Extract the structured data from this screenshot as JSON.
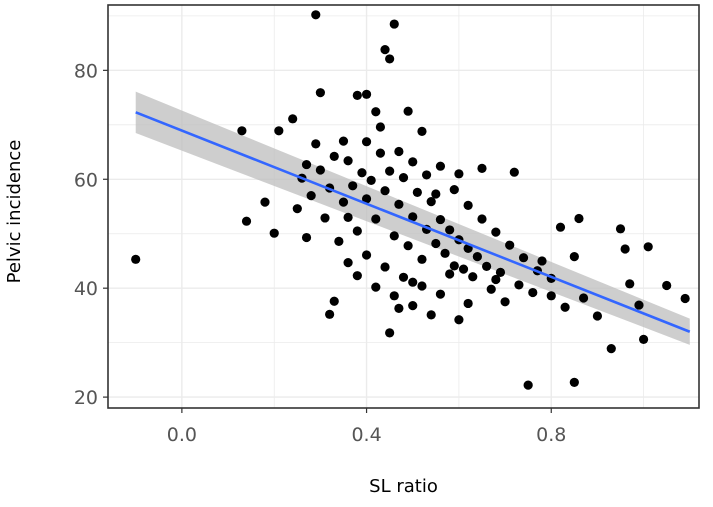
{
  "chart_data": {
    "type": "scatter",
    "title": "",
    "xlabel": "SL ratio",
    "ylabel": "Pelvic incidence",
    "xlim": [
      -0.16,
      1.12
    ],
    "ylim": [
      18,
      92
    ],
    "x_ticks": [
      0.0,
      0.4,
      0.8
    ],
    "x_tick_labels": [
      "0.0",
      "0.4",
      "0.8"
    ],
    "y_ticks": [
      20,
      40,
      60,
      80
    ],
    "y_tick_labels": [
      "20",
      "40",
      "60",
      "80"
    ],
    "grid": true,
    "legend": "none",
    "colors": {
      "points": "#000000",
      "trend_line": "#3366ff",
      "confidence_band": "#bdbdbd",
      "grid": "#ebebeb",
      "panel_border": "#333333"
    },
    "trend_line": {
      "type": "linear regression",
      "x": [
        -0.1,
        1.1
      ],
      "y": [
        72.3,
        32.0
      ],
      "ci_lower": [
        68.5,
        29.6
      ],
      "ci_upper": [
        76.1,
        34.4
      ]
    },
    "points": [
      {
        "x": -0.1,
        "y": 45.3
      },
      {
        "x": 0.13,
        "y": 68.9
      },
      {
        "x": 0.14,
        "y": 52.3
      },
      {
        "x": 0.18,
        "y": 55.8
      },
      {
        "x": 0.2,
        "y": 50.1
      },
      {
        "x": 0.21,
        "y": 68.9
      },
      {
        "x": 0.24,
        "y": 71.1
      },
      {
        "x": 0.25,
        "y": 54.6
      },
      {
        "x": 0.27,
        "y": 62.7
      },
      {
        "x": 0.29,
        "y": 90.2
      },
      {
        "x": 0.3,
        "y": 75.9
      },
      {
        "x": 0.32,
        "y": 35.2
      },
      {
        "x": 0.33,
        "y": 37.6
      },
      {
        "x": 0.35,
        "y": 67.0
      },
      {
        "x": 0.36,
        "y": 63.4
      },
      {
        "x": 0.38,
        "y": 75.4
      },
      {
        "x": 0.4,
        "y": 75.6
      },
      {
        "x": 0.42,
        "y": 72.4
      },
      {
        "x": 0.44,
        "y": 83.8
      },
      {
        "x": 0.45,
        "y": 82.1
      },
      {
        "x": 0.46,
        "y": 88.5
      },
      {
        "x": 0.45,
        "y": 31.8
      },
      {
        "x": 0.47,
        "y": 36.3
      },
      {
        "x": 0.49,
        "y": 72.5
      },
      {
        "x": 0.5,
        "y": 41.1
      },
      {
        "x": 0.52,
        "y": 68.8
      },
      {
        "x": 0.55,
        "y": 57.3
      },
      {
        "x": 0.58,
        "y": 42.6
      },
      {
        "x": 0.6,
        "y": 61.0
      },
      {
        "x": 0.62,
        "y": 37.2
      },
      {
        "x": 0.65,
        "y": 62.0
      },
      {
        "x": 0.68,
        "y": 41.6
      },
      {
        "x": 0.72,
        "y": 61.3
      },
      {
        "x": 0.75,
        "y": 22.2
      },
      {
        "x": 0.78,
        "y": 45.0
      },
      {
        "x": 0.8,
        "y": 38.6
      },
      {
        "x": 0.82,
        "y": 51.2
      },
      {
        "x": 0.85,
        "y": 45.8
      },
      {
        "x": 0.85,
        "y": 22.7
      },
      {
        "x": 0.86,
        "y": 52.8
      },
      {
        "x": 0.87,
        "y": 38.2
      },
      {
        "x": 0.9,
        "y": 34.9
      },
      {
        "x": 0.93,
        "y": 28.9
      },
      {
        "x": 0.95,
        "y": 50.9
      },
      {
        "x": 0.96,
        "y": 47.2
      },
      {
        "x": 0.97,
        "y": 40.8
      },
      {
        "x": 0.99,
        "y": 36.9
      },
      {
        "x": 1.0,
        "y": 30.6
      },
      {
        "x": 1.01,
        "y": 47.6
      },
      {
        "x": 1.05,
        "y": 40.5
      },
      {
        "x": 1.09,
        "y": 38.1
      },
      {
        "x": 0.35,
        "y": 55.8
      },
      {
        "x": 0.36,
        "y": 53.0
      },
      {
        "x": 0.37,
        "y": 58.8
      },
      {
        "x": 0.38,
        "y": 50.5
      },
      {
        "x": 0.39,
        "y": 61.2
      },
      {
        "x": 0.4,
        "y": 56.4
      },
      {
        "x": 0.41,
        "y": 59.8
      },
      {
        "x": 0.42,
        "y": 52.7
      },
      {
        "x": 0.43,
        "y": 64.8
      },
      {
        "x": 0.44,
        "y": 57.9
      },
      {
        "x": 0.45,
        "y": 61.5
      },
      {
        "x": 0.46,
        "y": 49.6
      },
      {
        "x": 0.47,
        "y": 55.4
      },
      {
        "x": 0.48,
        "y": 60.3
      },
      {
        "x": 0.49,
        "y": 47.8
      },
      {
        "x": 0.5,
        "y": 53.1
      },
      {
        "x": 0.51,
        "y": 57.6
      },
      {
        "x": 0.52,
        "y": 45.3
      },
      {
        "x": 0.53,
        "y": 50.8
      },
      {
        "x": 0.54,
        "y": 55.9
      },
      {
        "x": 0.55,
        "y": 48.2
      },
      {
        "x": 0.56,
        "y": 52.6
      },
      {
        "x": 0.57,
        "y": 46.4
      },
      {
        "x": 0.58,
        "y": 50.7
      },
      {
        "x": 0.59,
        "y": 44.1
      },
      {
        "x": 0.6,
        "y": 48.9
      },
      {
        "x": 0.61,
        "y": 43.5
      },
      {
        "x": 0.62,
        "y": 47.3
      },
      {
        "x": 0.63,
        "y": 42.1
      },
      {
        "x": 0.64,
        "y": 45.8
      },
      {
        "x": 0.66,
        "y": 44.0
      },
      {
        "x": 0.67,
        "y": 39.8
      },
      {
        "x": 0.69,
        "y": 42.9
      },
      {
        "x": 0.7,
        "y": 37.5
      },
      {
        "x": 0.73,
        "y": 40.6
      },
      {
        "x": 0.76,
        "y": 39.2
      },
      {
        "x": 0.32,
        "y": 58.4
      },
      {
        "x": 0.33,
        "y": 64.2
      },
      {
        "x": 0.34,
        "y": 48.6
      },
      {
        "x": 0.3,
        "y": 61.7
      },
      {
        "x": 0.31,
        "y": 52.9
      },
      {
        "x": 0.28,
        "y": 57.0
      },
      {
        "x": 0.29,
        "y": 66.5
      },
      {
        "x": 0.27,
        "y": 49.3
      },
      {
        "x": 0.26,
        "y": 60.2
      },
      {
        "x": 0.36,
        "y": 44.7
      },
      {
        "x": 0.38,
        "y": 42.3
      },
      {
        "x": 0.4,
        "y": 46.1
      },
      {
        "x": 0.42,
        "y": 40.2
      },
      {
        "x": 0.44,
        "y": 43.9
      },
      {
        "x": 0.46,
        "y": 38.6
      },
      {
        "x": 0.48,
        "y": 42.0
      },
      {
        "x": 0.5,
        "y": 36.8
      },
      {
        "x": 0.52,
        "y": 40.4
      },
      {
        "x": 0.54,
        "y": 35.1
      },
      {
        "x": 0.56,
        "y": 38.9
      },
      {
        "x": 0.6,
        "y": 34.2
      },
      {
        "x": 0.4,
        "y": 66.9
      },
      {
        "x": 0.43,
        "y": 69.6
      },
      {
        "x": 0.47,
        "y": 65.1
      },
      {
        "x": 0.5,
        "y": 63.2
      },
      {
        "x": 0.53,
        "y": 60.8
      },
      {
        "x": 0.56,
        "y": 62.4
      },
      {
        "x": 0.59,
        "y": 58.1
      },
      {
        "x": 0.62,
        "y": 55.2
      },
      {
        "x": 0.65,
        "y": 52.7
      },
      {
        "x": 0.68,
        "y": 50.3
      },
      {
        "x": 0.71,
        "y": 47.9
      },
      {
        "x": 0.74,
        "y": 45.6
      },
      {
        "x": 0.77,
        "y": 43.2
      },
      {
        "x": 0.8,
        "y": 41.8
      },
      {
        "x": 0.83,
        "y": 36.5
      }
    ]
  }
}
